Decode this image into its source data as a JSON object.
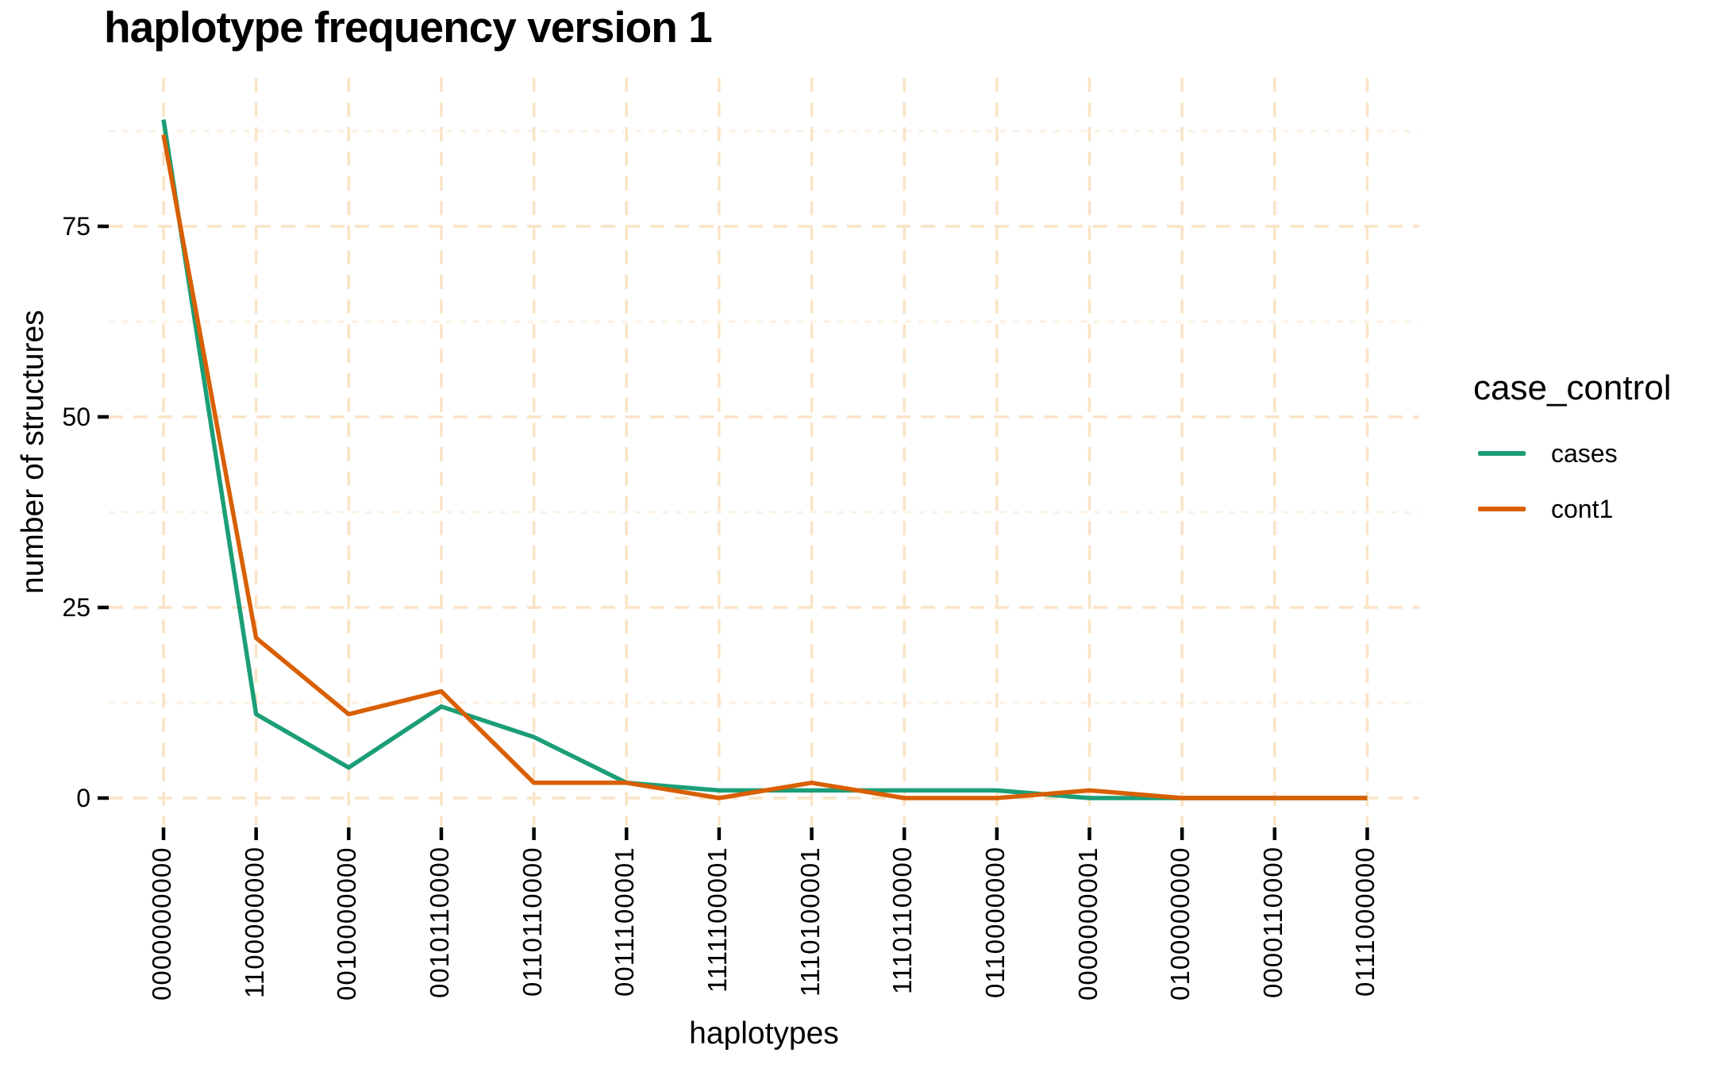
{
  "page": {
    "title": "haplotype frequency version 1"
  },
  "axes": {
    "x_title": "haplotypes",
    "y_title": "number of structures",
    "y_tick_labels": [
      "0",
      "25",
      "50",
      "75"
    ]
  },
  "legend": {
    "title": "case_control",
    "items": [
      {
        "label": "cases",
        "color": "#1B9E77"
      },
      {
        "label": "cont1",
        "color": "#D95F02"
      }
    ]
  },
  "style": {
    "grid_major_color": "#FAE4C6",
    "grid_minor_color": "#FCF1E2",
    "tick_color": "#000000",
    "text_color": "#000000",
    "background": "#FFFFFF"
  },
  "chart_data": {
    "type": "line",
    "title": "haplotype frequency version 1",
    "xlabel": "haplotypes",
    "ylabel": "number of structures",
    "categories": [
      "0000000000",
      "1100000000",
      "0010000000",
      "0010110000",
      "0110110000",
      "0011100001",
      "1111100001",
      "1110100001",
      "1110110000",
      "0110000000",
      "0000000001",
      "0100000000",
      "0000110000",
      "0111000000"
    ],
    "series": [
      {
        "name": "cases",
        "color": "#1B9E77",
        "values": [
          89,
          11,
          4,
          12,
          8,
          2,
          1,
          1,
          1,
          1,
          0,
          0,
          0,
          0
        ]
      },
      {
        "name": "cont1",
        "color": "#D95F02",
        "values": [
          87,
          21,
          11,
          14,
          2,
          2,
          0,
          2,
          0,
          0,
          1,
          0,
          0,
          0
        ]
      }
    ],
    "y_ticks": [
      0,
      25,
      50,
      75
    ],
    "y_minor_ticks": [
      12.5,
      37.5,
      62.5,
      87.5
    ],
    "ylim": [
      0,
      93
    ],
    "grid": "dashed",
    "legend_title": "case_control",
    "legend_position": "right"
  }
}
